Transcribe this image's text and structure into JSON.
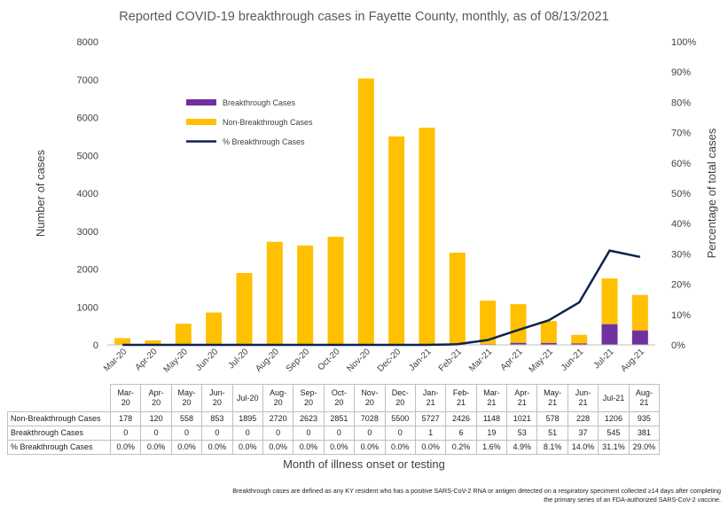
{
  "chart_data": {
    "type": "bar",
    "stacked": true,
    "title": "Reported COVID-19 breakthrough cases in Fayette County, monthly, as of 08/13/2021",
    "xlabel": "Month of illness onset or testing",
    "ylabel": "Number of cases",
    "y2label": "Percentage of total cases",
    "ylim": [
      0,
      8000
    ],
    "y2lim": [
      0,
      100
    ],
    "yticks": [
      "0",
      "1000",
      "2000",
      "3000",
      "4000",
      "5000",
      "6000",
      "7000",
      "8000"
    ],
    "y2ticks": [
      "0%",
      "10%",
      "20%",
      "30%",
      "40%",
      "50%",
      "60%",
      "70%",
      "80%",
      "90%",
      "100%"
    ],
    "categories": [
      "Mar-20",
      "Apr-20",
      "May-20",
      "Jun-20",
      "Jul-20",
      "Aug-20",
      "Sep-20",
      "Oct-20",
      "Nov-20",
      "Dec-20",
      "Jan-21",
      "Feb-21",
      "Mar-21",
      "Apr-21",
      "May-21",
      "Jun-21",
      "Jul-21",
      "Aug-21"
    ],
    "table_categories": [
      "Mar-20",
      "Apr-20",
      "May-20",
      "Jun-20",
      "Jul-20",
      "Aug-20",
      "Sep-20",
      "Oct-20",
      "Nov-20",
      "Dec-20",
      "Jan-21",
      "Feb-21",
      "Mar-21",
      "Apr-21",
      "May-21",
      "Jun-21",
      "Jul-21",
      "Aug-21"
    ],
    "series": [
      {
        "name": "Breakthrough Cases",
        "table_name": "Breakthrough Cases",
        "type": "bar",
        "color": "#7030a0",
        "values": [
          0,
          0,
          0,
          0,
          0,
          0,
          0,
          0,
          0,
          0,
          1,
          6,
          19,
          53,
          51,
          37,
          545,
          381
        ],
        "labels": [
          "0",
          "0",
          "0",
          "0",
          "0",
          "0",
          "0",
          "0",
          "0",
          "0",
          "1",
          "6",
          "19",
          "53",
          "51",
          "37",
          "545",
          "381"
        ]
      },
      {
        "name": "Non-Breakthrough Cases",
        "table_name": "Non-Breakthrough Cases",
        "type": "bar",
        "color": "#ffc000",
        "values": [
          178,
          120,
          558,
          853,
          1895,
          2720,
          2623,
          2851,
          7028,
          5500,
          5727,
          2426,
          1148,
          1021,
          578,
          228,
          1206,
          935
        ],
        "labels": [
          "178",
          "120",
          "558",
          "853",
          "1895",
          "2720",
          "2623",
          "2851",
          "7028",
          "5500",
          "5727",
          "2426",
          "1148",
          "1021",
          "578",
          "228",
          "1206",
          "935"
        ]
      },
      {
        "name": "% Breakthrough Cases",
        "table_name": "% Breakthrough Cases",
        "type": "line",
        "axis": "secondary",
        "color": "#0d2250",
        "values": [
          0.0,
          0.0,
          0.0,
          0.0,
          0.0,
          0.0,
          0.0,
          0.0,
          0.0,
          0.0,
          0.0,
          0.2,
          1.6,
          4.9,
          8.1,
          14.0,
          31.1,
          29.0
        ],
        "labels": [
          "0.0%",
          "0.0%",
          "0.0%",
          "0.0%",
          "0.0%",
          "0.0%",
          "0.0%",
          "0.0%",
          "0.0%",
          "0.0%",
          "0.0%",
          "0.2%",
          "1.6%",
          "4.9%",
          "8.1%",
          "14.0%",
          "31.1%",
          "29.0%"
        ]
      }
    ],
    "legend_position": "upper-left",
    "grid": false,
    "footnote": "Breakthrough cases are defined as any KY resident who has a positive SARS-CoV-2 RNA or antigen detected on a respiratory speciment collected ≥14 days after completing the primary series of an FDA-authorized SARS-CoV-2 vaccine."
  }
}
